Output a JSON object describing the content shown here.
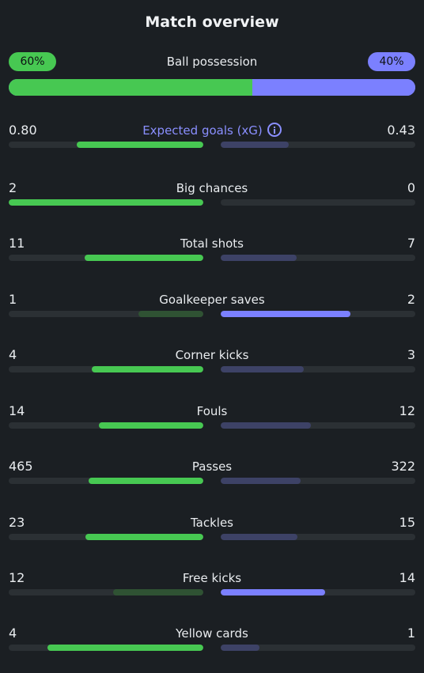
{
  "title": "Match overview",
  "colors": {
    "home": "#47c852",
    "away": "#7b80ff",
    "home_weak": "#2f5233",
    "away_weak": "#3d4266",
    "track": "#2b3034",
    "background": "#1b1f23"
  },
  "possession": {
    "label": "Ball possession",
    "home_display": "60%",
    "away_display": "40%",
    "home_share": 0.6,
    "away_share": 0.4
  },
  "stats": [
    {
      "label": "Expected goals (xG)",
      "home": "0.80",
      "away": "0.43",
      "home_value": 0.8,
      "away_value": 0.43,
      "icon": "info-icon",
      "accent": true
    },
    {
      "label": "Big chances",
      "home": "2",
      "away": "0",
      "home_value": 2,
      "away_value": 0
    },
    {
      "label": "Total shots",
      "home": "11",
      "away": "7",
      "home_value": 11,
      "away_value": 7
    },
    {
      "label": "Goalkeeper saves",
      "home": "1",
      "away": "2",
      "home_value": 1,
      "away_value": 2
    },
    {
      "label": "Corner kicks",
      "home": "4",
      "away": "3",
      "home_value": 4,
      "away_value": 3
    },
    {
      "label": "Fouls",
      "home": "14",
      "away": "12",
      "home_value": 14,
      "away_value": 12
    },
    {
      "label": "Passes",
      "home": "465",
      "away": "322",
      "home_value": 465,
      "away_value": 322
    },
    {
      "label": "Tackles",
      "home": "23",
      "away": "15",
      "home_value": 23,
      "away_value": 15
    },
    {
      "label": "Free kicks",
      "home": "12",
      "away": "14",
      "home_value": 12,
      "away_value": 14
    },
    {
      "label": "Yellow cards",
      "home": "4",
      "away": "1",
      "home_value": 4,
      "away_value": 1
    }
  ]
}
